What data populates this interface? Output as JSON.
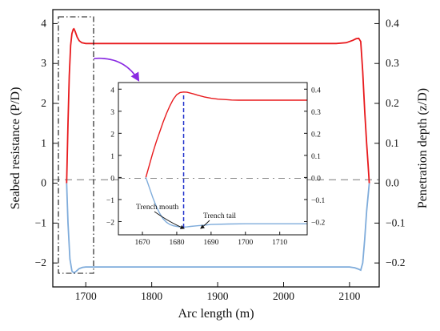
{
  "chart_data": [
    {
      "type": "line",
      "xlabel": "Arc length (m)",
      "ylabel": "Seabed resistance (P/D)",
      "y2label": "Penetration depth (z/D)",
      "xlim": [
        1650,
        2145
      ],
      "ylim": [
        -2.6,
        4.35
      ],
      "y2lim": [
        -0.26,
        0.435
      ],
      "x_ticks": [
        1700,
        1800,
        1900,
        2000,
        2100
      ],
      "y_ticks": [
        -2,
        -1,
        0,
        1,
        2,
        3,
        4
      ],
      "y2_ticks": [
        -0.2,
        -0.1,
        0.0,
        0.1,
        0.2,
        0.3,
        0.4
      ],
      "y_tick_labels": [
        "−2",
        "−1",
        "0",
        "1",
        "2",
        "3",
        "4"
      ],
      "y2_tick_labels": [
        "−0.2",
        "−0.1",
        "0.0",
        "0.1",
        "0.2",
        "0.3",
        "0.4"
      ],
      "reference_line_y": 0,
      "series": [
        {
          "axis": "left",
          "color": "#e8191c",
          "x": [
            1671,
            1673,
            1675,
            1677,
            1679,
            1681,
            1682,
            1684,
            1687,
            1690,
            1694,
            1700,
            1710,
            1750,
            1800,
            1900,
            2000,
            2080,
            2095,
            2105,
            2110,
            2114,
            2117,
            2120,
            2123,
            2126,
            2128,
            2130
          ],
          "y": [
            0,
            1.5,
            2.7,
            3.45,
            3.75,
            3.86,
            3.87,
            3.8,
            3.66,
            3.57,
            3.52,
            3.5,
            3.5,
            3.5,
            3.5,
            3.5,
            3.5,
            3.5,
            3.52,
            3.58,
            3.62,
            3.63,
            3.55,
            2.8,
            1.8,
            1.0,
            0.5,
            0
          ]
        },
        {
          "axis": "left",
          "color": "#7facdb",
          "x": [
            1671,
            1673,
            1676,
            1679,
            1682,
            1686,
            1690,
            1695,
            1700,
            1710,
            1750,
            1800,
            1900,
            2000,
            2080,
            2100,
            2108,
            2113,
            2117,
            2120,
            2123,
            2126,
            2130
          ],
          "y": [
            0,
            -1.0,
            -1.9,
            -2.2,
            -2.25,
            -2.2,
            -2.14,
            -2.11,
            -2.1,
            -2.1,
            -2.1,
            -2.1,
            -2.1,
            -2.1,
            -2.1,
            -2.1,
            -2.12,
            -2.15,
            -2.18,
            -2.0,
            -1.4,
            -0.7,
            0
          ]
        }
      ]
    },
    {
      "type": "line",
      "xlim": [
        1663,
        1718
      ],
      "ylim": [
        -2.6,
        4.3
      ],
      "y2lim": [
        -0.26,
        0.43
      ],
      "x_ticks": [
        1670,
        1680,
        1690,
        1700,
        1710
      ],
      "y_ticks": [
        -2,
        -1,
        0,
        1,
        2,
        3,
        4
      ],
      "y2_ticks": [
        -0.2,
        -0.1,
        0.0,
        0.1,
        0.2,
        0.3,
        0.4
      ],
      "y_tick_labels": [
        "−2",
        "−1",
        "0",
        "1",
        "2",
        "3",
        "4"
      ],
      "y2_tick_labels": [
        "−0.2",
        "−0.1",
        "0.0",
        "0.1",
        "0.2",
        "0.3",
        "0.4"
      ],
      "reference_line_y": 0,
      "marker_line_x": 1682,
      "series": [
        {
          "axis": "left",
          "color": "#e8191c",
          "x": [
            1671,
            1672,
            1673,
            1674,
            1675,
            1676,
            1677,
            1678,
            1679,
            1680,
            1681,
            1682,
            1683,
            1684,
            1685,
            1686,
            1688,
            1690,
            1692,
            1694,
            1696,
            1698,
            1700,
            1705,
            1710,
            1718
          ],
          "y": [
            0,
            0.55,
            1.1,
            1.6,
            2.05,
            2.5,
            2.9,
            3.25,
            3.55,
            3.75,
            3.85,
            3.87,
            3.86,
            3.82,
            3.78,
            3.73,
            3.65,
            3.59,
            3.55,
            3.53,
            3.51,
            3.5,
            3.5,
            3.5,
            3.5,
            3.5
          ]
        },
        {
          "axis": "left",
          "color": "#7facdb",
          "x": [
            1671,
            1672,
            1673,
            1674,
            1675,
            1676,
            1677,
            1678,
            1679,
            1680,
            1681,
            1682,
            1683,
            1684,
            1686,
            1688,
            1690,
            1695,
            1700,
            1705,
            1710,
            1718
          ],
          "y": [
            0,
            -0.45,
            -0.9,
            -1.3,
            -1.62,
            -1.87,
            -2.03,
            -2.13,
            -2.19,
            -2.22,
            -2.24,
            -2.25,
            -2.24,
            -2.22,
            -2.19,
            -2.16,
            -2.13,
            -2.11,
            -2.1,
            -2.1,
            -2.1,
            -2.1
          ]
        }
      ],
      "annotations": [
        {
          "text": "Trench mouth",
          "x": 1682,
          "y": -2.25
        },
        {
          "text": "Trench tail",
          "x": 1684,
          "y": -2.22
        }
      ]
    }
  ],
  "colors": {
    "red_curve": "#e8191c",
    "blue_curve": "#7facdb",
    "marker_line": "#2233cc",
    "zoom_arrow": "#8a2be2",
    "reference_line": "#888888"
  }
}
